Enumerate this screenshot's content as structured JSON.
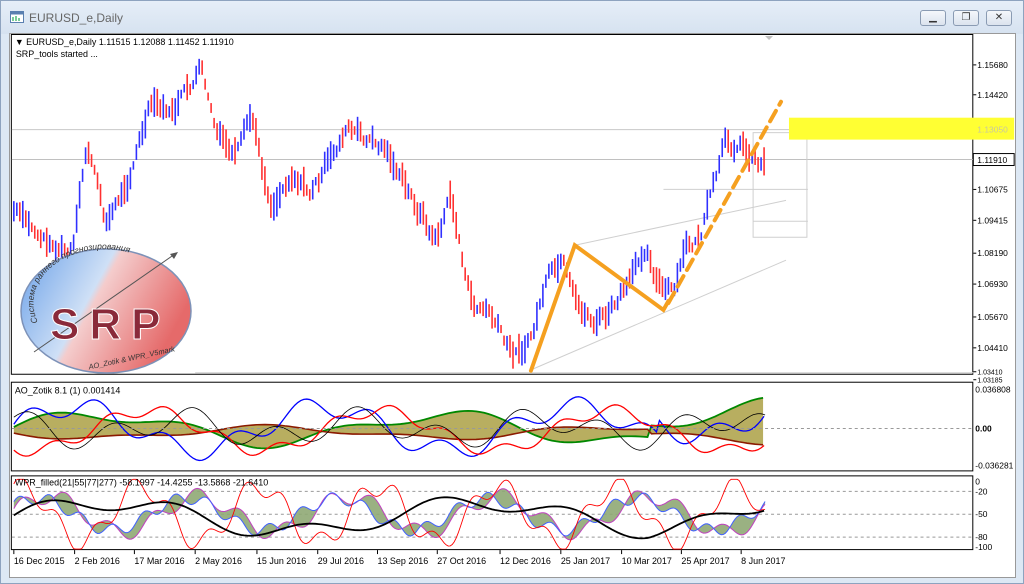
{
  "window": {
    "title": "EURUSD_e,Daily",
    "minimize_symbol": "▁",
    "restore_symbol": "❐",
    "close_symbol": "✕"
  },
  "main_panel": {
    "header": "▼ EURUSD_e,Daily  1.11515 1.12088 1.11452 1.11910",
    "status": "SRP_tools started ...",
    "price_axis": [
      "1.15680",
      "1.14420",
      "1.13050",
      "1.11910",
      "1.10675",
      "1.09415",
      "1.08190",
      "1.06930",
      "1.05670",
      "1.04410",
      "1.03410",
      "1.03185"
    ],
    "highlight_label": "1.13050",
    "current_price_label": "1.11910"
  },
  "ao_panel": {
    "header": "AO_Zotik 8.1 (1)  0.001414",
    "axis": [
      "0.036808",
      "0.00",
      "-0.036281"
    ]
  },
  "wpr_panel": {
    "header": "WPR_filled(21|55|77|277)  -58.1997 -14.4255 -13.5868 -21.6410",
    "axis": [
      "0",
      "-20",
      "-50",
      "-80",
      "-100"
    ]
  },
  "time_axis": [
    "16 Dec 2015",
    "2 Feb 2016",
    "17 Mar 2016",
    "2 May 2016",
    "15 Jun 2016",
    "29 Jul 2016",
    "13 Sep 2016",
    "27 Oct 2016",
    "12 Dec 2016",
    "25 Jan 2017",
    "10 Mar 2017",
    "25 Apr 2017",
    "8 Jun 2017"
  ],
  "logo": {
    "text": "SRP",
    "ring_text": "Система раннего прогнозирования",
    "footer_text": "AO_Zotik & WPR_V5mark"
  },
  "colors": {
    "bull_bar": "#3030ff",
    "bear_bar": "#ff3030",
    "pattern_line": "#f5a020",
    "highlight": "#ffff33",
    "ao_green": "#008800",
    "ao_fill": "#b8ae60"
  },
  "icons": [
    "chart-window-icon",
    "minimize-icon",
    "restore-icon",
    "close-icon"
  ]
}
